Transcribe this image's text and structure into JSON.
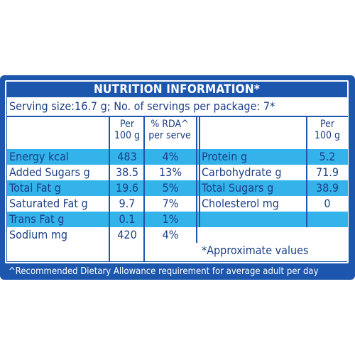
{
  "title": "NUTRITION INFORMATION*",
  "serving_line": "Serving size:16.7 g; No. of servings per package: 7*",
  "header": {
    "per_100g_line1": "Per",
    "per_100g_line2": "100 g",
    "rda_line1": "% RDA^",
    "rda_line2": "per serve",
    "right_per_line1": "Per",
    "right_per_line2": "100 g"
  },
  "left_rows": [
    {
      "label": "Energy kcal",
      "per100": "483",
      "rda": "4%"
    },
    {
      "label": "Added Sugars g",
      "per100": "38.5",
      "rda": "13%"
    },
    {
      "label": "Total Fat g",
      "per100": "19.6",
      "rda": "5%"
    },
    {
      "label": "Saturated Fat g",
      "per100": "9.7",
      "rda": "7%"
    },
    {
      "label": "Trans Fat g",
      "per100": "0.1",
      "rda": "1%"
    },
    {
      "label": "Sodium mg",
      "per100": "420",
      "rda": "4%"
    }
  ],
  "right_rows": [
    {
      "label": "Protein g",
      "per100": "5.2"
    },
    {
      "label": "Carbohydrate g",
      "per100": "71.9"
    },
    {
      "label": "Total Sugars g",
      "per100": "38.9"
    },
    {
      "label": "Cholesterol mg",
      "per100": "0"
    }
  ],
  "approx_note": "*Approximate values",
  "footnote": "^Recommended Dietary Allowance requirement for average adult per day",
  "colors": {
    "dark_blue": "#1c57ad",
    "light_blue": "#33b3ea",
    "text": "#1c3f86"
  }
}
